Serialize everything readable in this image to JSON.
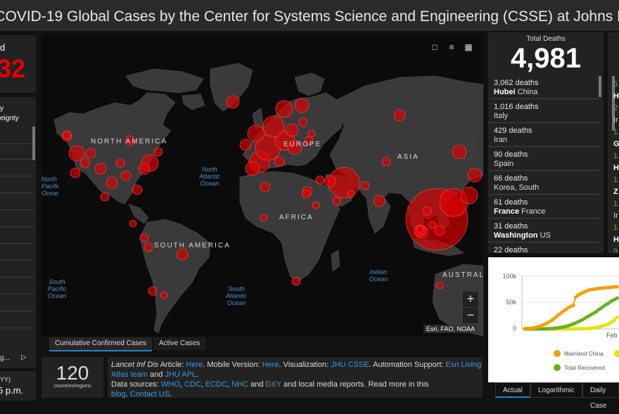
{
  "header": {
    "title": "s COVID-19 Global Cases by the Center for Systems Science and Engineering (CSSE) at Johns Hopkins Univ"
  },
  "left": {
    "confirmed_label_fragment": "d",
    "confirmed_value_fragment": "32",
    "list_header_line1": "y",
    "list_header_line2": "eignty",
    "date_fragment": "YY)",
    "time_fragment": "5 p.m.",
    "footer_fragment": "g...",
    "footer_arrow": "▷"
  },
  "map": {
    "continent_labels": [
      "NORTH AMERICA",
      "EUROPE",
      "ASIA",
      "AFRICA",
      "SOUTH AMERICA",
      "AUSTRAL"
    ],
    "ocean_labels": [
      "North Atlantic Ocean",
      "North Pacific Ocean",
      "South Pacific Ocean",
      "South Atlantic Ocean",
      "Indian Ocean"
    ],
    "attribution": "Esri, FAO, NOAA",
    "zoom_in": "+",
    "zoom_out": "−",
    "tabs": [
      "Cumulative Confirmed Cases",
      "Active Cases"
    ]
  },
  "deaths": {
    "label": "Total Deaths",
    "total": "4,981",
    "rows": [
      {
        "count": "3,062 deaths",
        "bold": "Hubei",
        "place": "China"
      },
      {
        "count": "1,016 deaths",
        "bold": "",
        "place": "Italy"
      },
      {
        "count": "429 deaths",
        "bold": "",
        "place": "Iran"
      },
      {
        "count": "90 deaths",
        "bold": "",
        "place": "Spain"
      },
      {
        "count": "66 deaths",
        "bold": "",
        "place": "Korea, South"
      },
      {
        "count": "61 deaths",
        "bold": "France",
        "place": "France"
      },
      {
        "count": "31 deaths",
        "bold": "Washington",
        "place": "US"
      },
      {
        "count": "22 deaths",
        "bold": "",
        "place": ""
      }
    ]
  },
  "right_fragments": [
    "5",
    "H",
    "2",
    "Ir",
    "1",
    "G",
    "1",
    "H",
    "1",
    "Z",
    "1",
    "Ir",
    "1",
    "H",
    "9"
  ],
  "countries": {
    "count": "120",
    "label": "countries/regions"
  },
  "info": {
    "line1_italic": "Lancet Inf Dis",
    "line1_a": " Article: ",
    "here1": "Here",
    "line1_b": ". Mobile Version: ",
    "here2": "Here",
    "line1_c": ". Visualization: ",
    "jhu_csse": "JHU CSSE",
    "line1_d": ". Automation Support: ",
    "esri": "Esri Living Atlas team",
    "and1": " and ",
    "jhu_apl": "JHU APL",
    "dot1": ".",
    "line2_a": "Data sources: ",
    "who": "WHO",
    "cdc": "CDC",
    "ecdc": "ECDC",
    "nhc": "NHC",
    "and2": " and ",
    "dxy": "DXY",
    "line2_b": " and local media reports. Read more in this",
    "blog": "blog",
    "dot2": ". ",
    "contact": "Contact US",
    "dot3": "."
  },
  "chart": {
    "type": "line",
    "y_ticks": [
      "100k",
      "50k",
      "0"
    ],
    "x_tick": "Feb",
    "ylim": [
      0,
      100000
    ],
    "legend": [
      "Mainland China",
      "",
      "Total Recovered"
    ],
    "colors": {
      "mainland": "#f5a000",
      "other": "#e6e600",
      "recovered": "#6ab019"
    },
    "tabs": [
      "Actual",
      "Logarithmic",
      "Daily Case"
    ]
  },
  "chart_data": {
    "type": "line",
    "ylim": [
      0,
      100000
    ],
    "series": [
      {
        "name": "Mainland China",
        "values": [
          500,
          600,
          900,
          1400,
          2100,
          2900,
          4500,
          6000,
          7800,
          9800,
          11900,
          14500,
          17300,
          20400,
          24500,
          28100,
          31200,
          34600,
          37500,
          40500,
          42800,
          44800,
          59900,
          63900,
          66600,
          68500,
          70500,
          72400,
          74200,
          74700,
          75500,
          76200,
          77000,
          77200,
          77700,
          78100,
          78500,
          78800,
          79300,
          79800,
          80100
        ]
      },
      {
        "name": "Total Recovered",
        "values": [
          0,
          0,
          0,
          0,
          0,
          50,
          100,
          150,
          250,
          350,
          500,
          700,
          1000,
          1300,
          1800,
          2500,
          3200,
          4000,
          5200,
          6500,
          8000,
          9500,
          11200,
          13400,
          15300,
          17600,
          20000,
          22800,
          25200,
          27900,
          30400,
          33000,
          36500,
          39300,
          42700,
          45600,
          48200,
          51200,
          53900,
          56100,
          58600
        ]
      },
      {
        "name": "",
        "values": [
          0,
          0,
          0,
          0,
          0,
          0,
          0,
          0,
          0,
          0,
          0,
          0,
          0,
          0,
          0,
          0,
          0,
          0,
          0,
          0,
          0,
          100,
          200,
          300,
          400,
          500,
          700,
          900,
          1200,
          1500,
          2000,
          2700,
          3700,
          4700,
          6000,
          7500,
          9000,
          11500,
          14000,
          17500,
          22000
        ]
      }
    ]
  }
}
